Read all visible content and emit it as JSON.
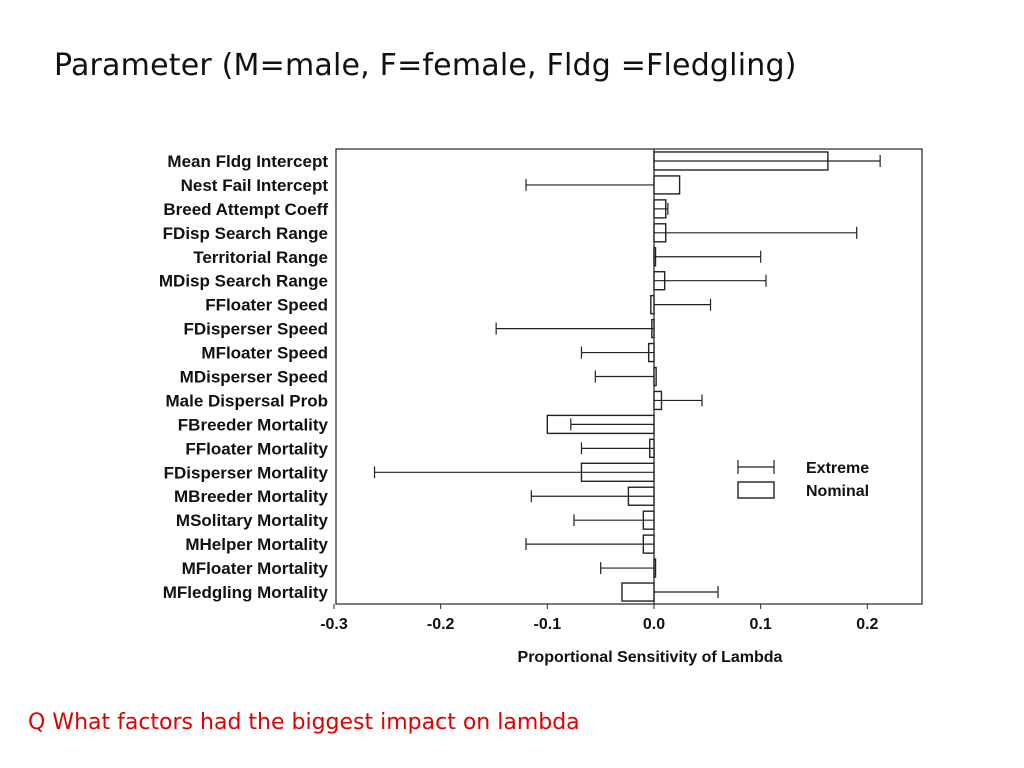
{
  "slide": {
    "title": "Parameter (M=male, F=female, Fldg =Fledgling)",
    "question": "Q What factors had the biggest impact on lambda"
  },
  "chart_data": {
    "type": "bar",
    "orientation": "horizontal",
    "xlabel": "Proportional Sensitivity of Lambda",
    "xlim": [
      -0.3,
      0.25
    ],
    "xticks": [
      "-0.3",
      "-0.2",
      "-0.1",
      "0.0",
      "0.1",
      "0.2"
    ],
    "xtick_values": [
      -0.3,
      -0.2,
      -0.1,
      0.0,
      0.1,
      0.2
    ],
    "grid": false,
    "legend_position": "right",
    "legend": [
      {
        "name": "Extreme",
        "style": "error-bar"
      },
      {
        "name": "Nominal",
        "style": "bar"
      }
    ],
    "categories": [
      "Mean Fldg Intercept",
      "Nest Fail Intercept",
      "Breed Attempt Coeff",
      "FDisp Search Range",
      "Territorial Range",
      "MDisp Search Range",
      "FFloater Speed",
      "FDisperser Speed",
      "MFloater Speed",
      "MDisperser Speed",
      "Male Dispersal Prob",
      "FBreeder Mortality",
      "FFloater Mortality",
      "FDisperser Mortality",
      "MBreeder Mortality",
      "MSolitary Mortality",
      "MHelper Mortality",
      "MFloater Mortality",
      "MFledgling Mortality"
    ],
    "series": [
      {
        "name": "Nominal",
        "values": [
          0.163,
          0.024,
          0.011,
          0.011,
          0.0,
          0.01,
          -0.003,
          -0.002,
          -0.005,
          0.002,
          0.007,
          -0.1,
          -0.004,
          -0.068,
          -0.024,
          -0.01,
          -0.01,
          0.0,
          -0.03
        ]
      },
      {
        "name": "Extreme",
        "values": [
          0.212,
          -0.12,
          0.013,
          0.19,
          0.1,
          0.105,
          0.053,
          -0.148,
          -0.068,
          -0.055,
          0.045,
          -0.078,
          -0.068,
          -0.262,
          -0.115,
          -0.075,
          -0.12,
          -0.05,
          0.06
        ]
      }
    ]
  }
}
